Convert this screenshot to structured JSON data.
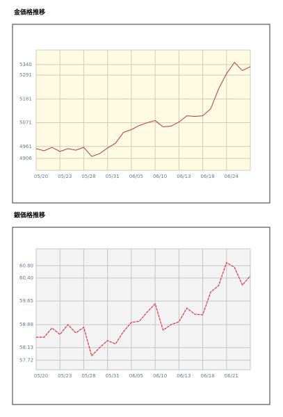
{
  "chart_data": [
    {
      "type": "line",
      "title": "金価格推移",
      "categories": [
        "05/20",
        null,
        null,
        "05/23",
        null,
        null,
        "05/28",
        null,
        null,
        "05/31",
        null,
        null,
        "06/05",
        null,
        null,
        "06/10",
        null,
        null,
        "06/13",
        null,
        null,
        "06/18",
        null,
        null,
        "06/24",
        null,
        null,
        null
      ],
      "values": [
        4951,
        4941,
        4957,
        4938,
        4951,
        4944,
        4957,
        4915,
        4928,
        4954,
        4976,
        5026,
        5039,
        5058,
        5071,
        5081,
        5052,
        5055,
        5074,
        5103,
        5100,
        5103,
        5135,
        5227,
        5298,
        5350,
        5312,
        5330
      ],
      "color": "#b03a3a",
      "background": "#fffbe3",
      "grid_color": "#cfcdb4",
      "ylim": [
        4851,
        5407
      ],
      "yticks": [
        4906,
        4961,
        5071,
        5181,
        5291,
        5340
      ],
      "grid": true
    },
    {
      "type": "line",
      "title": "銀価格推移",
      "categories": [
        "05/20",
        null,
        null,
        "05/23",
        null,
        null,
        "05/28",
        null,
        null,
        "05/31",
        null,
        null,
        "06/05",
        null,
        null,
        "06/10",
        null,
        null,
        "06/13",
        null,
        null,
        "06/18",
        null,
        null,
        "06/21",
        null,
        null,
        null
      ],
      "values": [
        58.47,
        58.47,
        58.77,
        58.56,
        58.88,
        58.61,
        58.79,
        57.86,
        58.13,
        58.36,
        58.25,
        58.65,
        58.95,
        58.99,
        59.29,
        59.56,
        58.7,
        58.88,
        58.97,
        59.42,
        59.22,
        59.2,
        59.94,
        60.15,
        60.9,
        60.75,
        60.17,
        60.47
      ],
      "color": "#c81e2a",
      "background": "#f3f3f3",
      "grid_color": "#c4c4c4",
      "dashed": true,
      "ylim": [
        57.41,
        61.35
      ],
      "yticks": [
        {
          "value": 57.72,
          "label": "57.72"
        },
        {
          "value": 58.13,
          "label": "58.13"
        },
        {
          "value": 58.88,
          "label": "58.88"
        },
        {
          "value": 59.65,
          "label": "59.65"
        },
        {
          "value": 60.4,
          "label": "60.40"
        },
        {
          "value": 60.8,
          "label": "60.80"
        }
      ],
      "grid": true
    }
  ]
}
